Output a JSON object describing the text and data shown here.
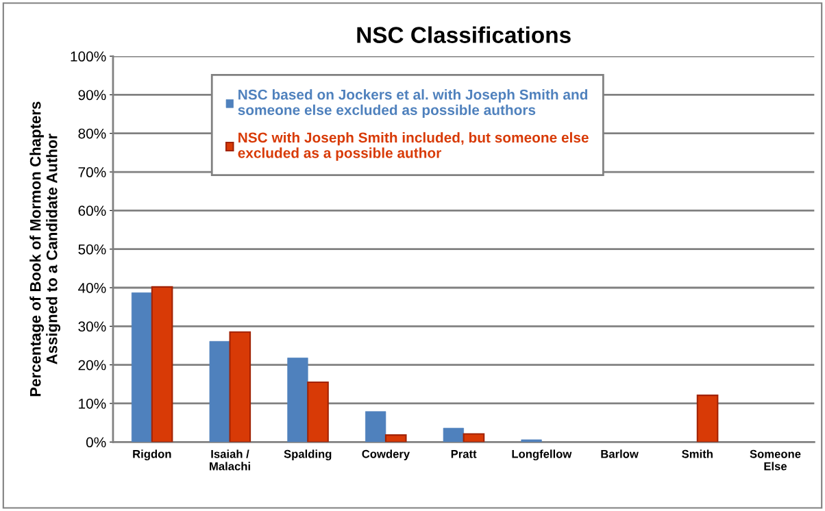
{
  "chart_data": {
    "type": "bar",
    "title": "NSC Classifications",
    "ylabel": "Percentage of Book of Mormon Chapters\nAssigned to a Candidate Author",
    "categories": [
      "Rigdon",
      "Isaiah /\nMalachi",
      "Spalding",
      "Cowdery",
      "Pratt",
      "Longfellow",
      "Barlow",
      "Smith",
      "Someone\nElse"
    ],
    "series": [
      {
        "name": "NSC based on Jockers et al. with Joseph Smith and\nsomeone else excluded as possible authors",
        "color": "#4f81bd",
        "values": [
          38.7,
          26.1,
          21.8,
          7.9,
          3.6,
          0.6,
          0,
          0,
          0
        ]
      },
      {
        "name": "NSC with Joseph Smith included, but someone else\nexcluded as a possible author",
        "color": "#d83a06",
        "values": [
          40.2,
          28.5,
          15.5,
          1.8,
          2.1,
          0,
          0,
          12.1,
          0
        ]
      }
    ],
    "ylim": [
      0,
      100
    ],
    "yticks": [
      {
        "value": 0,
        "label": "0%"
      },
      {
        "value": 10,
        "label": "10%"
      },
      {
        "value": 20,
        "label": "20%"
      },
      {
        "value": 30,
        "label": "30%"
      },
      {
        "value": 40,
        "label": "40%"
      },
      {
        "value": 50,
        "label": "50%"
      },
      {
        "value": 60,
        "label": "60%"
      },
      {
        "value": 70,
        "label": "70%"
      },
      {
        "value": 80,
        "label": "80%"
      },
      {
        "value": 90,
        "label": "90%"
      },
      {
        "value": 100,
        "label": "100%"
      }
    ],
    "grid": "y",
    "legend": "top"
  }
}
